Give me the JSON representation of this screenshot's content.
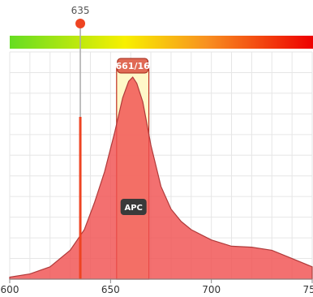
{
  "chart_data": {
    "type": "area",
    "title": "",
    "xlabel": "",
    "ylabel": "",
    "xlim": [
      600,
      750
    ],
    "ylim": [
      0,
      1
    ],
    "x_ticks": [
      "600",
      "650",
      "700",
      "750"
    ],
    "grid": true,
    "excitation_laser": {
      "wavelength": 635,
      "label": "635",
      "color": "#ee4422"
    },
    "filter": {
      "label": "661/16",
      "center": 661,
      "width": 16,
      "color": "#f0d860"
    },
    "series": [
      {
        "name": "APC",
        "color": "#f05050",
        "points": [
          [
            600,
            0.01
          ],
          [
            610,
            0.025
          ],
          [
            620,
            0.06
          ],
          [
            630,
            0.14
          ],
          [
            637,
            0.24
          ],
          [
            642,
            0.37
          ],
          [
            647,
            0.52
          ],
          [
            652,
            0.71
          ],
          [
            656,
            0.88
          ],
          [
            659,
            0.96
          ],
          [
            661,
            0.98
          ],
          [
            663,
            0.95
          ],
          [
            666,
            0.86
          ],
          [
            670,
            0.65
          ],
          [
            675,
            0.45
          ],
          [
            680,
            0.34
          ],
          [
            685,
            0.28
          ],
          [
            690,
            0.24
          ],
          [
            700,
            0.19
          ],
          [
            710,
            0.16
          ],
          [
            720,
            0.155
          ],
          [
            730,
            0.14
          ],
          [
            740,
            0.1
          ],
          [
            750,
            0.06
          ]
        ],
        "peak_label": "APC"
      }
    ],
    "color_bar": {
      "from": "#66dd22",
      "via": "#f8f000",
      "to": "#ee0000"
    }
  }
}
